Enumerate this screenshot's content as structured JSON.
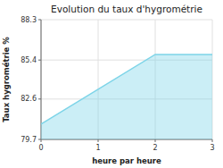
{
  "chart_data": {
    "type": "area",
    "title": "Evolution du taux d'hygrométrie",
    "xlabel": "heure par heure",
    "ylabel": "Taux hygrométrie %",
    "x": [
      0,
      2,
      3
    ],
    "values": [
      80.8,
      85.8,
      85.8
    ],
    "xlim": [
      0,
      3
    ],
    "ylim": [
      79.7,
      88.3
    ],
    "xticks": [
      0,
      1,
      2,
      3
    ],
    "yticks": [
      79.7,
      82.6,
      85.4,
      88.3
    ],
    "color": "#7dd4e8",
    "grid": true
  }
}
